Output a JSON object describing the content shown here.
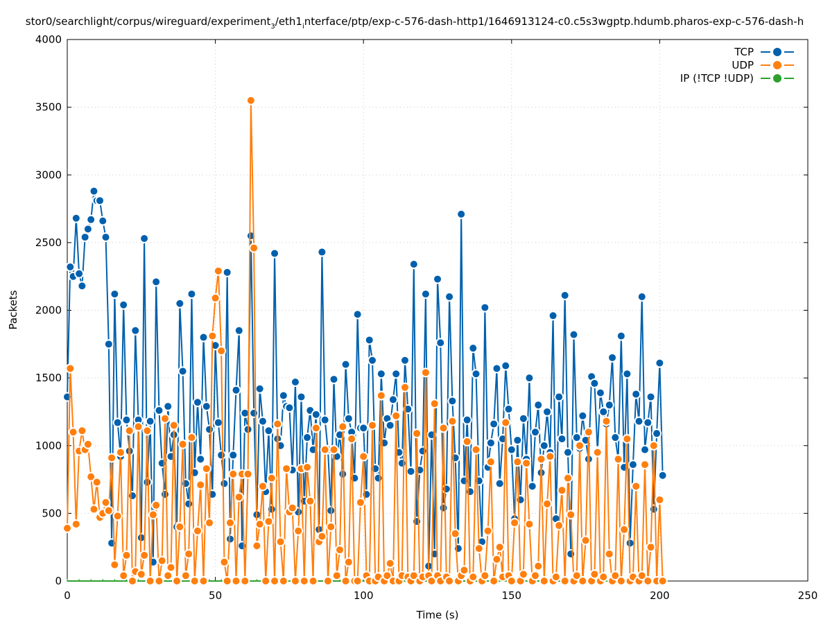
{
  "chart_data": {
    "type": "line",
    "title": "stor0/searchlight/corpus/wireguard/experiment_3/eth1_interface/ptp/exp-c-576-dash-http1/1646913124-c0.c5s3wgptp.hdumb.pharos-exp-c-576-dash-h",
    "xlabel": "Time (s)",
    "ylabel": "Packets",
    "xlim": [
      0,
      250
    ],
    "ylim": [
      0,
      4000
    ],
    "xticks": [
      0,
      50,
      100,
      150,
      200,
      250
    ],
    "yticks": [
      0,
      500,
      1000,
      1500,
      2000,
      2500,
      3000,
      3500,
      4000
    ],
    "grid": true,
    "legend_position": "top-right",
    "series": [
      {
        "name": "TCP",
        "color": "#0060ad",
        "x_start": 0,
        "x_step": 1,
        "values": [
          1360,
          2320,
          2250,
          2680,
          2270,
          2180,
          2540,
          2600,
          2670,
          2880,
          2810,
          2810,
          2660,
          2540,
          1750,
          280,
          2120,
          1170,
          920,
          2040,
          1190,
          960,
          630,
          1850,
          1190,
          320,
          2530,
          730,
          1180,
          140,
          2210,
          1260,
          870,
          640,
          1290,
          920,
          1080,
          400,
          2050,
          1550,
          720,
          570,
          2120,
          800,
          1320,
          900,
          1800,
          1290,
          1120,
          640,
          1740,
          1170,
          930,
          720,
          2280,
          310,
          930,
          1410,
          1850,
          260,
          1240,
          1120,
          2550,
          1240,
          490,
          1420,
          1180,
          660,
          1110,
          530,
          2420,
          1050,
          1000,
          1370,
          1290,
          1280,
          820,
          1470,
          510,
          1360,
          590,
          1060,
          1260,
          970,
          1230,
          380,
          2430,
          1190,
          970,
          520,
          1490,
          920,
          1080,
          790,
          1600,
          1200,
          1100,
          760,
          1970,
          1130,
          1130,
          640,
          1780,
          1630,
          830,
          760,
          1530,
          1020,
          1200,
          1150,
          1340,
          1530,
          950,
          870,
          1630,
          1270,
          810,
          2340,
          440,
          820,
          960,
          2120,
          110,
          1080,
          200,
          2230,
          1760,
          540,
          680,
          2100,
          1330,
          910,
          240,
          2710,
          740,
          1190,
          660,
          1720,
          1530,
          740,
          290,
          2020,
          840,
          1020,
          1160,
          1570,
          720,
          1050,
          1590,
          1270,
          970,
          460,
          1040,
          600,
          1200,
          900,
          1500,
          700,
          1100,
          1300,
          800,
          1000,
          1250,
          950,
          1960,
          460,
          1360,
          1050,
          2110,
          950,
          200,
          1820,
          1060,
          980,
          1220,
          1040,
          900,
          1510,
          1460,
          960,
          1390,
          1250,
          1160,
          1300,
          1650,
          1060,
          900,
          1810,
          840,
          1530,
          280,
          860,
          1380,
          1180,
          2100,
          970,
          1170,
          1360,
          530,
          1090,
          1610,
          780
        ]
      },
      {
        "name": "UDP",
        "color": "#ff7f0e",
        "x_start": 0,
        "x_step": 1,
        "values": [
          390,
          1570,
          1100,
          420,
          960,
          1110,
          970,
          1010,
          770,
          530,
          730,
          470,
          500,
          580,
          520,
          910,
          120,
          480,
          950,
          40,
          190,
          1110,
          0,
          70,
          1140,
          50,
          190,
          1110,
          0,
          490,
          560,
          0,
          150,
          1200,
          40,
          100,
          1150,
          0,
          400,
          1010,
          40,
          200,
          1060,
          0,
          370,
          710,
          0,
          830,
          430,
          1810,
          2090,
          2290,
          1700,
          140,
          0,
          430,
          790,
          0,
          620,
          790,
          0,
          790,
          3550,
          2460,
          260,
          420,
          700,
          0,
          440,
          760,
          0,
          1160,
          290,
          0,
          830,
          510,
          540,
          0,
          370,
          830,
          0,
          840,
          590,
          0,
          1130,
          290,
          330,
          970,
          0,
          400,
          970,
          40,
          230,
          1140,
          0,
          140,
          1050,
          0,
          0,
          580,
          920,
          40,
          0,
          1150,
          0,
          30,
          1370,
          0,
          40,
          130,
          0,
          1220,
          0,
          40,
          1430,
          30,
          0,
          40,
          1090,
          0,
          30,
          1540,
          40,
          0,
          1310,
          40,
          0,
          1130,
          30,
          0,
          1180,
          350,
          0,
          40,
          80,
          1030,
          0,
          30,
          970,
          240,
          0,
          40,
          370,
          880,
          0,
          160,
          250,
          30,
          1170,
          40,
          0,
          430,
          880,
          0,
          50,
          870,
          420,
          0,
          40,
          110,
          900,
          0,
          570,
          920,
          0,
          30,
          410,
          670,
          0,
          760,
          490,
          0,
          40,
          1000,
          0,
          300,
          1100,
          0,
          50,
          950,
          0,
          30,
          1180,
          200,
          0,
          40,
          900,
          0,
          380,
          1050,
          0,
          30,
          700,
          0,
          40,
          860,
          0,
          250,
          1000,
          0,
          600,
          0
        ]
      },
      {
        "name": "IP (!TCP  !UDP)",
        "color": "#2ca02c",
        "x": [
          0,
          201
        ],
        "values": [
          0,
          0
        ]
      }
    ]
  }
}
